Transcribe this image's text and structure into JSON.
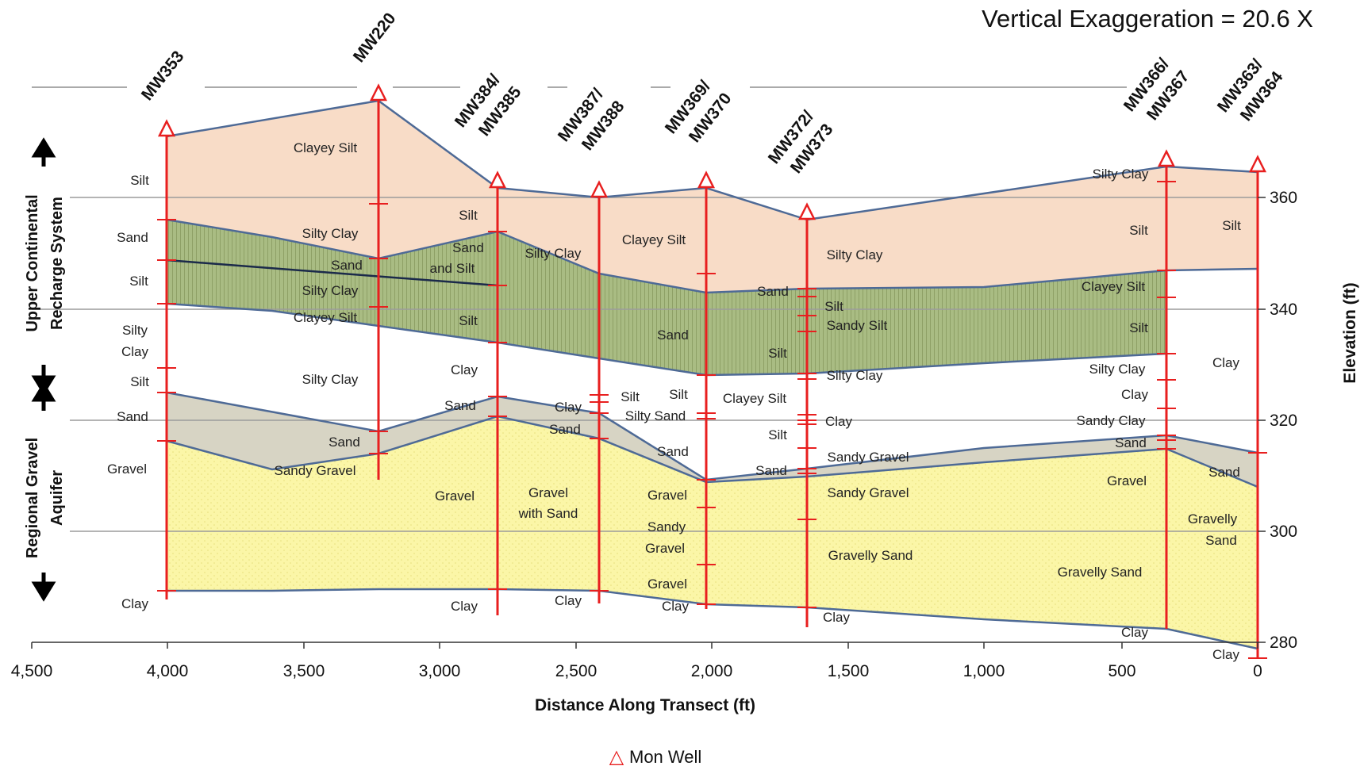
{
  "vertical_exaggeration": "Vertical Exaggeration = 20.6 X",
  "x_axis_title": "Distance Along Transect (ft)",
  "y_axis_title": "Elevation (ft)",
  "x_ticks": [
    "4,500",
    "4,000",
    "3,500",
    "3,000",
    "2,500",
    "2,000",
    "1,500",
    "1,000",
    "500",
    "0"
  ],
  "y_ticks": [
    "360",
    "340",
    "320",
    "300",
    "280"
  ],
  "side_labels": {
    "upper": [
      "Upper Continental",
      "Recharge System"
    ],
    "lower": [
      "Regional Gravel",
      "Aquifer"
    ]
  },
  "legend": {
    "symbol": "△",
    "label": "Mon Well"
  },
  "wells": [
    {
      "name": [
        "MW353"
      ]
    },
    {
      "name": [
        "MW220"
      ]
    },
    {
      "name": [
        "MW384/",
        "MW385"
      ]
    },
    {
      "name": [
        "MW387/",
        "MW388"
      ]
    },
    {
      "name": [
        "MW369/",
        "MW370"
      ]
    },
    {
      "name": [
        "MW372/",
        "MW373"
      ]
    },
    {
      "name": [
        "MW366/",
        "MW367"
      ]
    },
    {
      "name": [
        "MW363/",
        "MW364"
      ]
    }
  ],
  "unit_labels": [
    "Silt",
    "Sand",
    "Silt",
    "Silty",
    "Clay",
    "Silt",
    "Sand",
    "Gravel",
    "Clay",
    "Clayey Silt",
    "Silty Clay",
    "Sand",
    "Silty Clay",
    "Clayey Silt",
    "Silty Clay",
    "Sand",
    "Sandy Gravel",
    "Silt",
    "Sand",
    "and Silt",
    "Silt",
    "Clay",
    "Sand",
    "Gravel",
    "Clay",
    "Silty Clay",
    "Clay",
    "Sand",
    "Gravel",
    "with Sand",
    "Clay",
    "Clayey Silt",
    "Sand",
    "Silt",
    "Silt",
    "Silty Sand",
    "Sand",
    "Gravel",
    "Sandy",
    "Gravel",
    "Gravel",
    "Clay",
    "Silty Clay",
    "Sand",
    "Silt",
    "Sandy Silt",
    "Silt",
    "Clayey Silt",
    "Silty Clay",
    "Clay",
    "Silt",
    "Sandy Gravel",
    "Sand",
    "Sandy Gravel",
    "Gravelly Sand",
    "Clay",
    "Silty Clay",
    "Silt",
    "Clayey Silt",
    "Silt",
    "Silty Clay",
    "Clay",
    "Sandy Clay",
    "Sand",
    "Gravel",
    "Gravelly Sand",
    "Clay",
    "Silt",
    "Clay",
    "Sand",
    "Gravelly",
    "Sand",
    "Clay"
  ],
  "colors": {
    "silt_clay_zone": "#f8dcc7",
    "sand_silt_zone": "#a9bc83",
    "sand_zone": "#d7d4c4",
    "gravel_zone": "#fbf6a7",
    "boundary": "#4e6a96",
    "well": "#e81f1f"
  }
}
